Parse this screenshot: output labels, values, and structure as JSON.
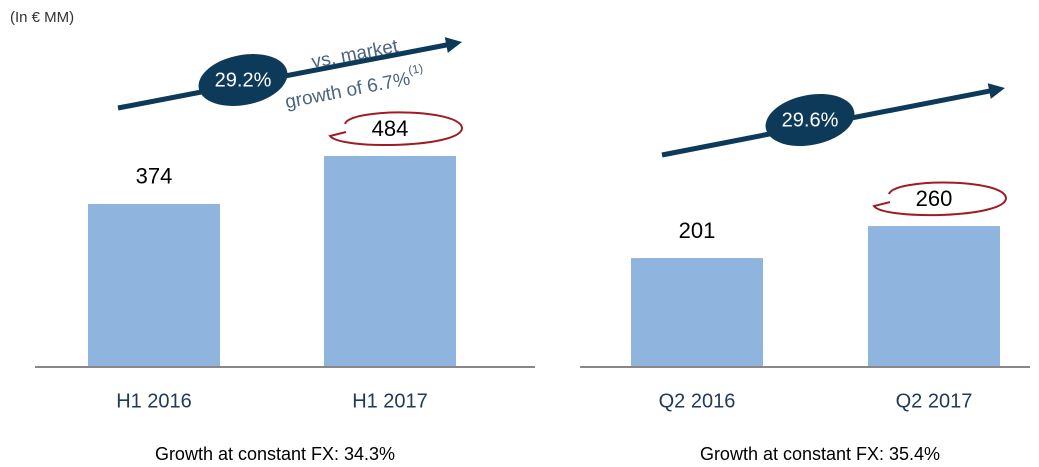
{
  "unit_label": "(In € MM)",
  "chart_data": [
    {
      "type": "bar",
      "categories": [
        "H1 2016",
        "H1 2017"
      ],
      "values": [
        374,
        484
      ],
      "color": "#8fb4dd",
      "growth_label": "29.2%",
      "annotation_line1": "vs. market",
      "annotation_line2": "growth of 6.7%",
      "annotation_ref": "(1)",
      "footer": "Growth at constant FX: 34.3%"
    },
    {
      "type": "bar",
      "categories": [
        "Q2 2016",
        "Q2 2017"
      ],
      "values": [
        201,
        260
      ],
      "color": "#8fb4dd",
      "growth_label": "29.6%",
      "footer": "Growth at constant FX: 35.4%"
    }
  ]
}
